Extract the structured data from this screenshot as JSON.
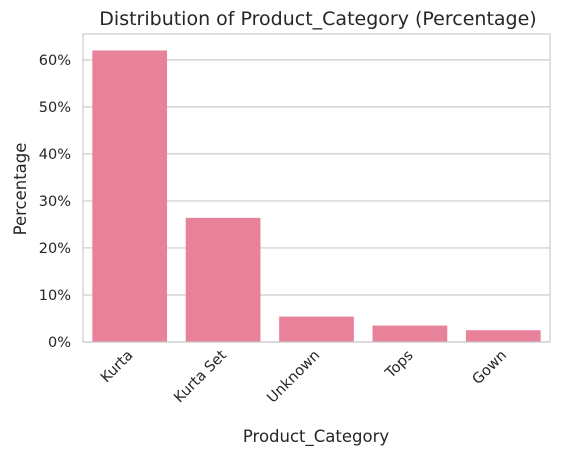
{
  "chart_data": {
    "type": "bar",
    "title": "Distribution of Product_Category (Percentage)",
    "xlabel": "Product_Category",
    "ylabel": "Percentage",
    "categories": [
      "Kurta",
      "Kurta Set",
      "Unknown",
      "Tops",
      "Gown"
    ],
    "values": [
      62.0,
      26.4,
      5.4,
      3.5,
      2.5
    ],
    "ylim": [
      0,
      65.5
    ],
    "yticks": [
      0,
      10,
      20,
      30,
      40,
      50,
      60
    ],
    "ytick_labels": [
      "0%",
      "10%",
      "20%",
      "30%",
      "40%",
      "50%",
      "60%"
    ],
    "grid": "horizontal",
    "colors": {
      "bar": "#e8829a",
      "grid": "#cccccc",
      "axes_edge": "#cccccc",
      "text": "#262626"
    }
  }
}
